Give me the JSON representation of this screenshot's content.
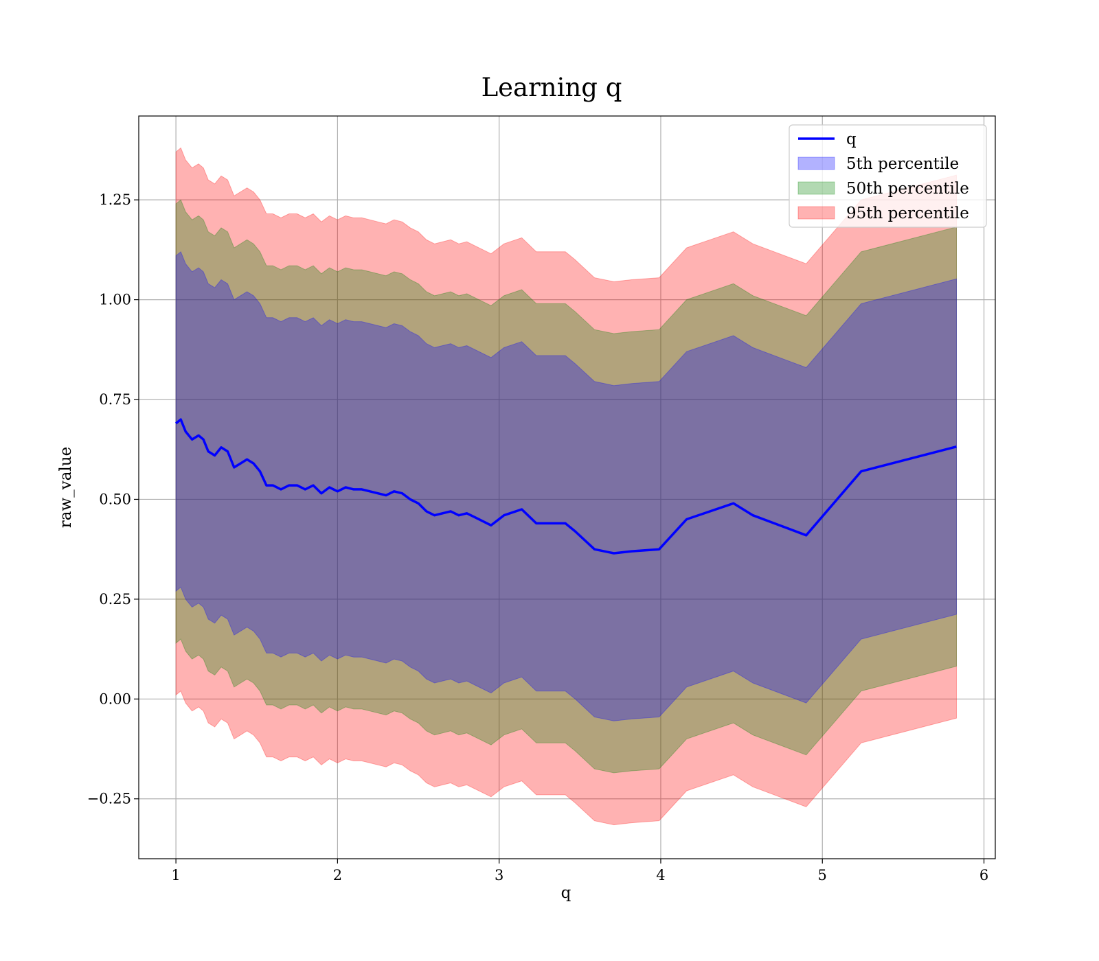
{
  "chart_data": {
    "type": "area",
    "title": "Learning q",
    "xlabel": "q",
    "ylabel": "raw_value",
    "xlim": [
      0.77,
      6.07
    ],
    "ylim": [
      -0.4,
      1.46
    ],
    "xticks": [
      1,
      2,
      3,
      4,
      5,
      6
    ],
    "yticks": [
      -0.25,
      0.0,
      0.25,
      0.5,
      0.75,
      1.0,
      1.25
    ],
    "ytick_labels": [
      "−0.25",
      "0.00",
      "0.25",
      "0.50",
      "0.75",
      "1.00",
      "1.25"
    ],
    "grid": true,
    "legend_position": "top-right",
    "x": [
      1.0,
      1.03,
      1.06,
      1.1,
      1.14,
      1.17,
      1.2,
      1.24,
      1.28,
      1.32,
      1.36,
      1.4,
      1.44,
      1.48,
      1.52,
      1.56,
      1.6,
      1.65,
      1.7,
      1.75,
      1.8,
      1.85,
      1.9,
      1.95,
      2.0,
      2.05,
      2.1,
      2.15,
      2.2,
      2.25,
      2.3,
      2.35,
      2.4,
      2.45,
      2.5,
      2.55,
      2.6,
      2.7,
      2.75,
      2.8,
      2.85,
      2.95,
      3.03,
      3.14,
      3.23,
      3.41,
      3.47,
      3.59,
      3.71,
      3.82,
      3.99,
      4.16,
      4.45,
      4.57,
      4.9,
      5.24,
      5.83
    ],
    "series": [
      {
        "name": "q",
        "color": "#0000ff",
        "values": [
          0.69,
          0.7,
          0.67,
          0.65,
          0.66,
          0.65,
          0.62,
          0.61,
          0.63,
          0.62,
          0.58,
          0.59,
          0.6,
          0.59,
          0.57,
          0.535,
          0.535,
          0.525,
          0.535,
          0.535,
          0.525,
          0.535,
          0.515,
          0.53,
          0.52,
          0.53,
          0.525,
          0.525,
          0.52,
          0.515,
          0.51,
          0.52,
          0.515,
          0.5,
          0.49,
          0.47,
          0.46,
          0.47,
          0.46,
          0.465,
          0.455,
          0.435,
          0.46,
          0.475,
          0.44,
          0.44,
          0.42,
          0.375,
          0.365,
          0.37,
          0.375,
          0.45,
          0.49,
          0.46,
          0.41,
          0.57,
          0.632
        ]
      },
      {
        "name": "5th percentile",
        "color": "#0000ff",
        "opacity": 0.3,
        "offset": 0.42
      },
      {
        "name": "50th percentile",
        "color": "#008000",
        "opacity": 0.3,
        "offset": 0.55
      },
      {
        "name": "95th percentile",
        "color": "#ff0000",
        "opacity": 0.3,
        "offset": 0.68
      }
    ]
  }
}
